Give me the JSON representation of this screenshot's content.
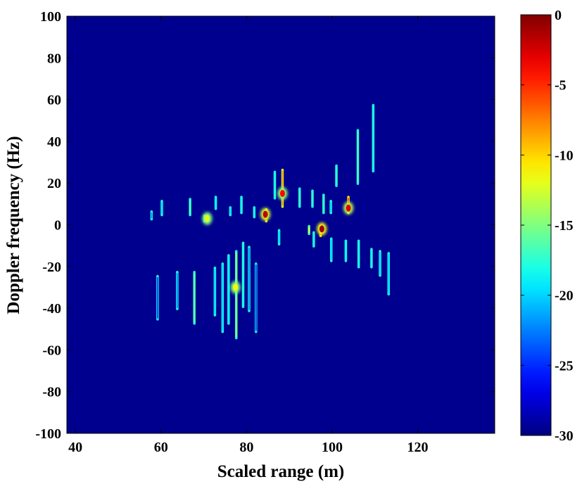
{
  "chart_data": {
    "type": "heatmap",
    "title": "",
    "xlabel": "Scaled range (m)",
    "ylabel": "Doppler frequency (Hz)",
    "xlim": [
      38,
      138
    ],
    "ylim": [
      -100,
      100
    ],
    "xticks": [
      40,
      60,
      80,
      100,
      120
    ],
    "yticks": [
      100,
      80,
      60,
      40,
      20,
      0,
      -20,
      -40,
      -60,
      -80,
      -100
    ],
    "grid": false,
    "background_color": "#00008f",
    "colorbar": {
      "label": "",
      "range": [
        -30,
        0
      ],
      "ticks": [
        0,
        -5,
        -10,
        -15,
        -20,
        -25,
        -30
      ],
      "colormap": "jet",
      "colors": [
        "#00008f",
        "#0000ff",
        "#00ffff",
        "#ffff00",
        "#ff0000",
        "#800000"
      ]
    },
    "scatterers": [
      {
        "x": 57.8,
        "y1": 2,
        "y2": 7,
        "level": -22
      },
      {
        "x": 60.2,
        "y1": 4,
        "y2": 12,
        "level": -20
      },
      {
        "x": 66.8,
        "y1": 4,
        "y2": 13,
        "level": -16
      },
      {
        "x": 70.2,
        "y1": 1,
        "y2": 5,
        "level": -12
      },
      {
        "x": 72.8,
        "y1": 7,
        "y2": 14,
        "level": -19
      },
      {
        "x": 76.2,
        "y1": 4,
        "y2": 9,
        "level": -20
      },
      {
        "x": 78.8,
        "y1": 5,
        "y2": 14,
        "level": -18
      },
      {
        "x": 81.8,
        "y1": 3,
        "y2": 9,
        "level": -18
      },
      {
        "x": 84.6,
        "y1": 1,
        "y2": 8,
        "level": -6
      },
      {
        "x": 86.6,
        "y1": 12,
        "y2": 26,
        "level": -18
      },
      {
        "x": 88.4,
        "y1": 8,
        "y2": 27,
        "level": -8
      },
      {
        "x": 92.4,
        "y1": 8,
        "y2": 18,
        "level": -17
      },
      {
        "x": 95.4,
        "y1": 8,
        "y2": 17,
        "level": -17
      },
      {
        "x": 98.0,
        "y1": 5,
        "y2": 15,
        "level": -17
      },
      {
        "x": 99.7,
        "y1": 5,
        "y2": 12,
        "level": -20
      },
      {
        "x": 101.0,
        "y1": 18,
        "y2": 29,
        "level": -17
      },
      {
        "x": 103.8,
        "y1": 5,
        "y2": 14,
        "level": -6
      },
      {
        "x": 106.0,
        "y1": 19,
        "y2": 46,
        "level": -16
      },
      {
        "x": 109.6,
        "y1": 25,
        "y2": 58,
        "level": -18
      },
      {
        "x": 94.6,
        "y1": -5,
        "y2": 0,
        "level": -12
      },
      {
        "x": 97.3,
        "y1": -6,
        "y2": 0,
        "level": -6
      },
      {
        "x": 95.7,
        "y1": -11,
        "y2": -3,
        "level": -18
      },
      {
        "x": 87.6,
        "y1": -10,
        "y2": -2,
        "level": -20
      },
      {
        "x": 99.8,
        "y1": -18,
        "y2": -6,
        "level": -20
      },
      {
        "x": 103.2,
        "y1": -18,
        "y2": -7,
        "level": -19
      },
      {
        "x": 106.2,
        "y1": -21,
        "y2": -7,
        "level": -18
      },
      {
        "x": 109.2,
        "y1": -21,
        "y2": -11,
        "level": -18
      },
      {
        "x": 111.2,
        "y1": -25,
        "y2": -12,
        "level": -20
      },
      {
        "x": 113.2,
        "y1": -34,
        "y2": -13,
        "level": -20
      },
      {
        "x": 59.2,
        "y1": -46,
        "y2": -24,
        "level": -24
      },
      {
        "x": 63.8,
        "y1": -41,
        "y2": -22,
        "level": -22
      },
      {
        "x": 67.8,
        "y1": -48,
        "y2": -22,
        "level": -15
      },
      {
        "x": 72.6,
        "y1": -44,
        "y2": -20,
        "level": -20
      },
      {
        "x": 74.4,
        "y1": -52,
        "y2": -18,
        "level": -20
      },
      {
        "x": 75.8,
        "y1": -48,
        "y2": -14,
        "level": -19
      },
      {
        "x": 77.6,
        "y1": -55,
        "y2": -12,
        "level": -14
      },
      {
        "x": 79.2,
        "y1": -40,
        "y2": -8,
        "level": -18
      },
      {
        "x": 80.6,
        "y1": -42,
        "y2": -10,
        "level": -22
      },
      {
        "x": 82.2,
        "y1": -52,
        "y2": -18,
        "level": -25
      }
    ],
    "hotspots": [
      {
        "x": 84.4,
        "y": 5,
        "level": -2
      },
      {
        "x": 88.4,
        "y": 15,
        "level": -4
      },
      {
        "x": 97.6,
        "y": -2,
        "level": -1
      },
      {
        "x": 103.8,
        "y": 8,
        "level": -3
      },
      {
        "x": 70.8,
        "y": 3,
        "level": -12
      },
      {
        "x": 77.4,
        "y": -30,
        "level": -11
      }
    ]
  }
}
